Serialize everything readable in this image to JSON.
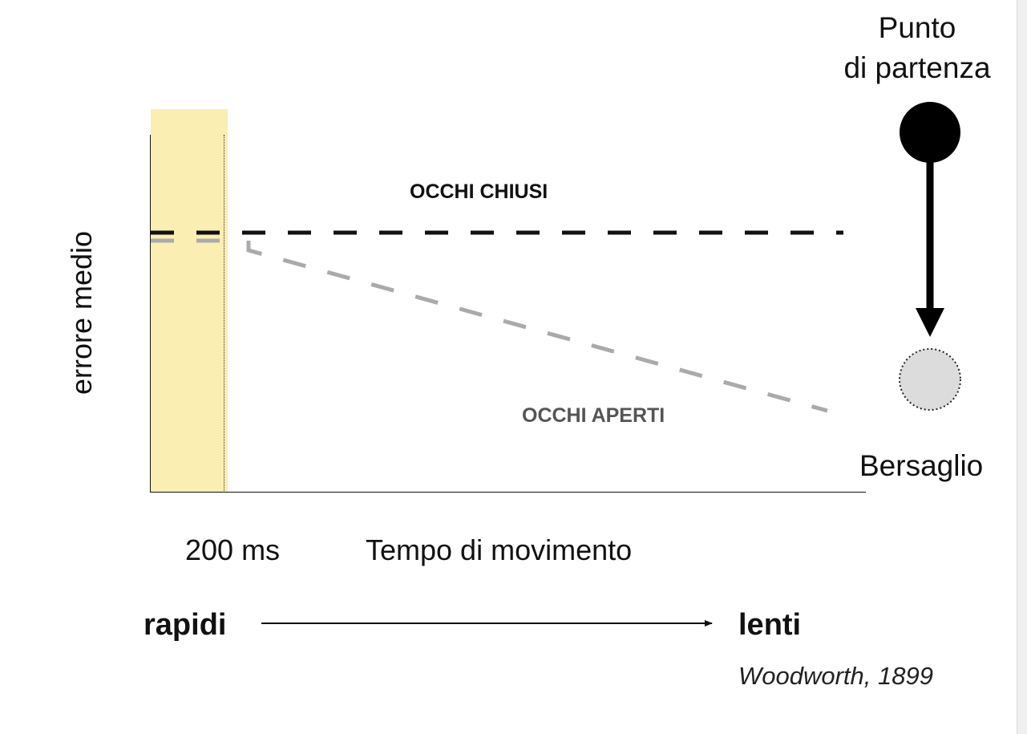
{
  "diagram": {
    "y_axis_label": "errore medio",
    "x_axis_label": "Tempo di movimento",
    "threshold_label": "200 ms",
    "series": [
      {
        "name": "OCCHI CHIUSI",
        "color": "#111111",
        "trend": "flat"
      },
      {
        "name": "OCCHI APERTI",
        "color": "#aaaaaa",
        "trend": "decreasing"
      }
    ],
    "speed_scale": {
      "start": "rapidi",
      "end": "lenti"
    },
    "citation": "Woodworth, 1899",
    "schematic": {
      "start_label_line1": "Punto",
      "start_label_line2": "di partenza",
      "target_label": "Bersaglio"
    },
    "colors": {
      "highlight": "#fbeeb3",
      "start_point": "#000000",
      "target": "#dcdcdc"
    }
  }
}
